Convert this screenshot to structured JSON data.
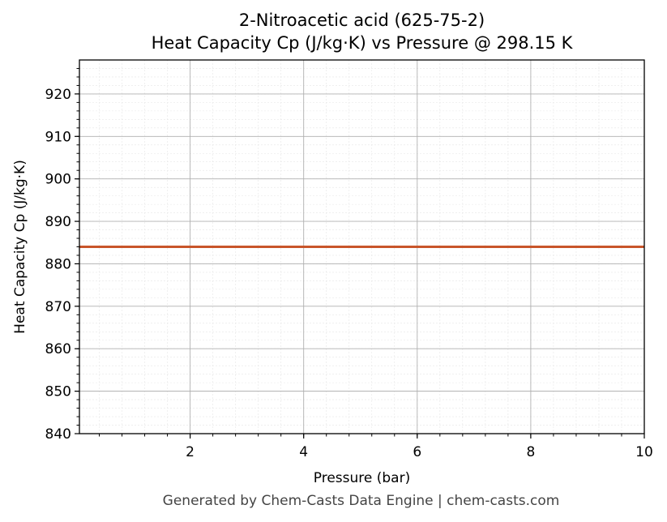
{
  "chart_data": {
    "type": "line",
    "title": "2-Nitroacetic acid (625-75-2)",
    "subtitle": "Heat Capacity Cp (J/kg·K) vs Pressure @ 298.15 K",
    "xlabel": "Pressure (bar)",
    "ylabel": "Heat Capacity Cp (J/kg·K)",
    "xlim": [
      0.05,
      10
    ],
    "ylim": [
      840,
      928
    ],
    "xticks": [
      2,
      4,
      6,
      8,
      10
    ],
    "yticks": [
      840,
      850,
      860,
      870,
      880,
      890,
      900,
      910,
      920
    ],
    "grid": true,
    "minor_grid": true,
    "series": [
      {
        "color": "#c8552a",
        "x": [
          0.05,
          1,
          2,
          3,
          4,
          5,
          6,
          7,
          8,
          9,
          10
        ],
        "y": [
          884,
          884,
          884,
          884,
          884,
          884,
          884,
          884,
          884,
          884,
          884
        ]
      }
    ]
  },
  "footer": "Generated by Chem-Casts Data Engine | chem-casts.com"
}
